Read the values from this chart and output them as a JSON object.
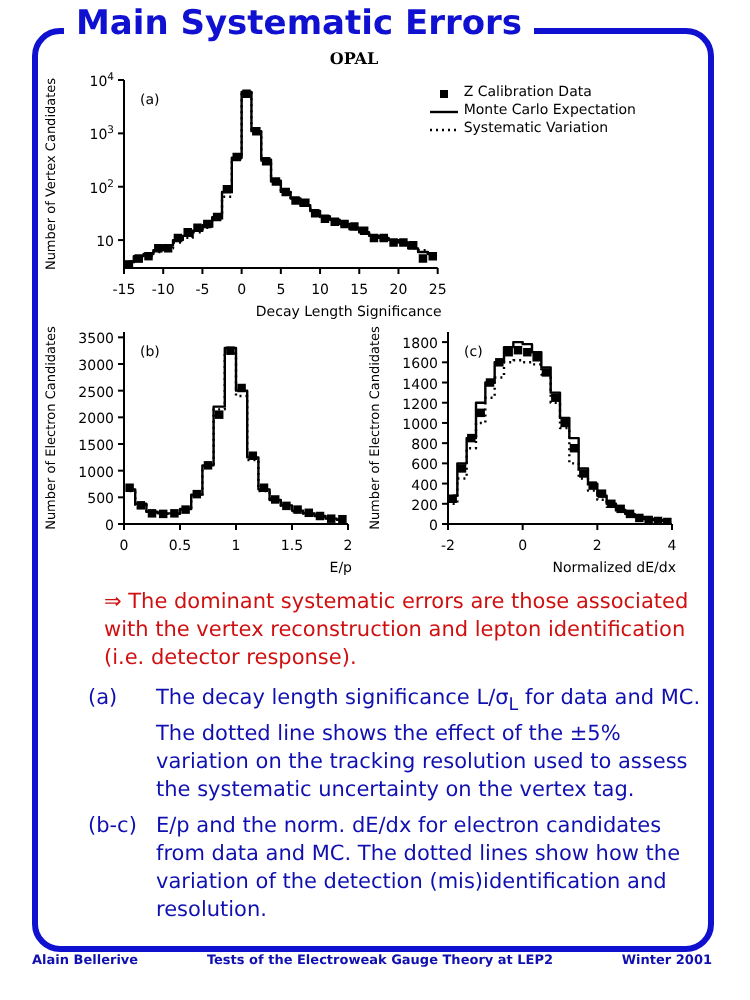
{
  "chart_data": [
    {
      "type": "step",
      "title": "Main Systematic Errors",
      "subtitle": "OPAL",
      "xlabel": "Decay Length Significance",
      "ylabel": "Number of Vertex Candidates",
      "log": "y",
      "legend": "top right",
      "annotations": [
        "(a)"
      ],
      "x": [
        -14.375,
        -13.125,
        -11.875,
        -10.625,
        -9.375,
        -8.125,
        -6.875,
        -5.625,
        -4.375,
        -3.125,
        -1.875,
        -0.625,
        0.625,
        1.875,
        3.125,
        4.375,
        5.625,
        6.875,
        8.125,
        9.375,
        10.625,
        11.875,
        13.125,
        14.375,
        15.625,
        16.875,
        18.125,
        19.375,
        20.625,
        21.875,
        23.125,
        24.375
      ],
      "xlim": [
        -15,
        25
      ],
      "xticks": [
        -15,
        -10,
        -5,
        0,
        5,
        10,
        15,
        20,
        25
      ],
      "ylim": [
        3,
        10000
      ],
      "yticks": [
        10,
        {
          "value": 100,
          "label": "10$^{2}$"
        },
        {
          "value": 1000,
          "label": "10$^{3}$"
        },
        {
          "value": 10000,
          "label": "10$^{4}$"
        }
      ],
      "series": [
        {
          "name": "Z Calibration Data",
          "type": "scatter",
          "marker": "square",
          "color": "#000000",
          "values": [
            3.5,
            4.5,
            5,
            7,
            7,
            11,
            14,
            17,
            20,
            27,
            90,
            360,
            5500,
            1100,
            300,
            125,
            80,
            55,
            50,
            32,
            25,
            22,
            20,
            18,
            15,
            11,
            11,
            9,
            9,
            8,
            4.5,
            5
          ]
        },
        {
          "name": "Monte Carlo Expectation",
          "color": "#000000",
          "values": [
            4,
            5,
            5.5,
            6.5,
            8,
            10,
            12,
            15,
            19,
            27,
            80,
            350,
            6000,
            1100,
            320,
            130,
            80,
            60,
            45,
            35,
            28,
            24,
            20,
            17,
            14,
            12,
            11,
            10,
            9,
            7,
            6,
            5.5
          ]
        },
        {
          "name": "Systematic Variation",
          "color": "#000000",
          "line_style": "dotted",
          "values": [
            3.5,
            4.5,
            5,
            6,
            7,
            9,
            11,
            14,
            17,
            24,
            65,
            330,
            5800,
            1050,
            310,
            125,
            78,
            58,
            44,
            34,
            27,
            23,
            19,
            16,
            14,
            12,
            10,
            9.5,
            8.5,
            7,
            6.5,
            5.5
          ]
        }
      ]
    },
    {
      "type": "step",
      "xlabel": "E/p",
      "ylabel": "Number of Electron Candidates",
      "annotations": [
        "(b)"
      ],
      "x": [
        0.05,
        0.15,
        0.25,
        0.35,
        0.45,
        0.55,
        0.65,
        0.75,
        0.85,
        0.95,
        1.05,
        1.15,
        1.25,
        1.35,
        1.45,
        1.55,
        1.65,
        1.75,
        1.85,
        1.95
      ],
      "xlim": [
        0,
        2
      ],
      "xticks": [
        0,
        0.5,
        1,
        1.5,
        2
      ],
      "ylim": [
        0,
        3600
      ],
      "yticks": [
        0,
        500,
        1000,
        1500,
        2000,
        2500,
        3000,
        3500
      ],
      "series": [
        {
          "type": "scatter",
          "marker": "square",
          "color": "#000000",
          "values": [
            680,
            350,
            200,
            190,
            200,
            270,
            560,
            1100,
            2050,
            3250,
            2550,
            1280,
            680,
            460,
            340,
            270,
            210,
            150,
            100,
            90
          ]
        },
        {
          "color": "#000000",
          "values": [
            650,
            380,
            230,
            200,
            200,
            280,
            550,
            1100,
            2200,
            3300,
            2500,
            1250,
            650,
            450,
            350,
            250,
            200,
            150,
            100,
            80
          ]
        },
        {
          "color": "#000000",
          "line_style": "dotted",
          "values": [
            620,
            360,
            220,
            190,
            190,
            270,
            530,
            1080,
            2150,
            3200,
            2400,
            1200,
            620,
            440,
            340,
            240,
            190,
            140,
            100,
            80
          ]
        }
      ]
    },
    {
      "type": "step",
      "xlabel": "Normalized dE/dx",
      "ylabel": "Number of Electron Candidates",
      "annotations": [
        "(c)"
      ],
      "x": [
        -1.875,
        -1.625,
        -1.375,
        -1.125,
        -0.875,
        -0.625,
        -0.375,
        -0.125,
        0.125,
        0.375,
        0.625,
        0.875,
        1.125,
        1.375,
        1.625,
        1.875,
        2.125,
        2.375,
        2.625,
        2.875,
        3.125,
        3.375,
        3.625,
        3.875
      ],
      "xlim": [
        -2,
        4
      ],
      "xticks": [
        -2,
        0,
        2,
        4
      ],
      "ylim": [
        0,
        1900
      ],
      "yticks": [
        0,
        200,
        400,
        600,
        800,
        1000,
        1200,
        1400,
        1600,
        1800
      ],
      "series": [
        {
          "type": "scatter",
          "marker": "square",
          "color": "#000000",
          "values": [
            250,
            550,
            850,
            1100,
            1400,
            1600,
            1700,
            1720,
            1700,
            1650,
            1500,
            1250,
            1000,
            750,
            500,
            380,
            300,
            200,
            150,
            100,
            60,
            40,
            30,
            20
          ]
        },
        {
          "color": "#000000",
          "values": [
            280,
            600,
            850,
            1200,
            1400,
            1600,
            1750,
            1800,
            1780,
            1700,
            1550,
            1300,
            1050,
            850,
            550,
            400,
            280,
            200,
            140,
            100,
            70,
            50,
            40,
            30
          ]
        },
        {
          "color": "#000000",
          "line_style": "dotted",
          "values": [
            200,
            450,
            750,
            1000,
            1250,
            1450,
            1600,
            1620,
            1600,
            1580,
            1480,
            1200,
            950,
            600,
            450,
            330,
            240,
            170,
            120,
            90,
            60,
            50,
            40,
            30
          ]
        }
      ]
    },
    {
      "type": "other",
      "annotations": [
        "⇒ The dominant systematic errors are those associated with the vertex reconstruction and lepton identification (i.e. detector response).",
        "(a)",
        "The decay length significance L/σ$_{L}$ for data and MC. The dotted line shows the effect of the ±5% variation on the tracking resolution used to assess the systematic uncertainty on the vertex tag.",
        "(b-c)",
        "E/p and the norm. dE/dx for electron candidates from data and MC. The dotted lines show how the variation of the detection (mis)identification and resolution.",
        "Alain Bellerive",
        "Tests of the Electroweak Gauge Theory at LEP2",
        "Winter 2001"
      ]
    }
  ]
}
